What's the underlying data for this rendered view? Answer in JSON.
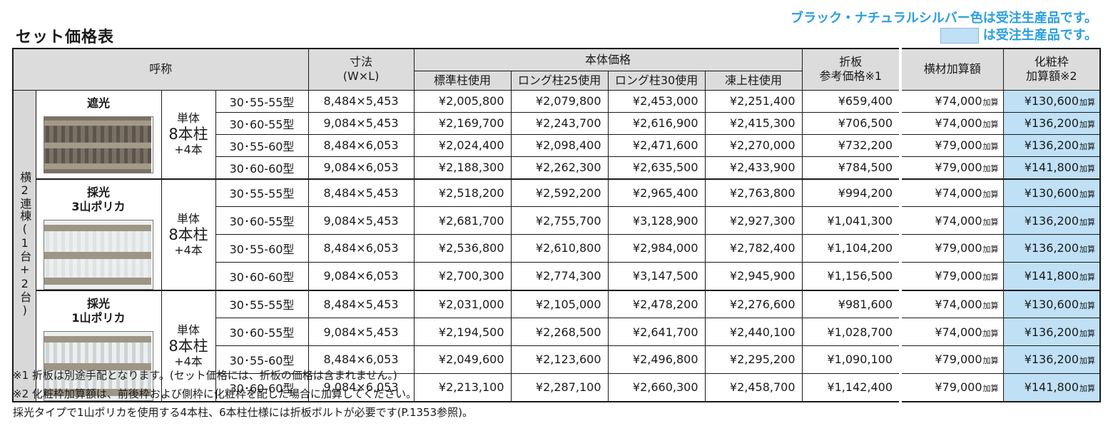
{
  "title": "セット価格表",
  "notice": {
    "line1": "ブラック・ナチュラルシルバー色は受注生産品です。",
    "line2": "は受注生産品です。"
  },
  "header": {
    "name": "呼称",
    "size_line1": "寸法",
    "size_line2": "(W×L)",
    "body_price": "本体価格",
    "col_standard": "標準柱使用",
    "col_long25": "ロング柱25使用",
    "col_long30": "ロング柱30使用",
    "col_frost": "凍上柱使用",
    "orioban_line1": "折板",
    "orioban_line2": "参考価格※1",
    "yokozai": "横材加算額",
    "kesho_line1": "化粧枠",
    "kesho_line2": "加算額※2"
  },
  "group_label": "横2連棟(1台+2台)",
  "add_suffix": "加算",
  "sections": [
    {
      "kind": "遮光",
      "posts_line1": "単体",
      "posts_line2": "8本柱",
      "posts_line3": "+4本",
      "rows": [
        {
          "model": "30･55-55型",
          "dim": "8,484×5,453",
          "std": "¥2,005,800",
          "l25": "¥2,079,800",
          "l30": "¥2,453,000",
          "frost": "¥2,251,400",
          "orioban": "¥659,400",
          "yokozai": "¥74,000",
          "kesho": "¥130,600"
        },
        {
          "model": "30･60-55型",
          "dim": "9,084×5,453",
          "std": "¥2,169,700",
          "l25": "¥2,243,700",
          "l30": "¥2,616,900",
          "frost": "¥2,415,300",
          "orioban": "¥706,500",
          "yokozai": "¥74,000",
          "kesho": "¥136,200"
        },
        {
          "model": "30･55-60型",
          "dim": "8,484×6,053",
          "std": "¥2,024,400",
          "l25": "¥2,098,400",
          "l30": "¥2,471,600",
          "frost": "¥2,270,000",
          "orioban": "¥732,200",
          "yokozai": "¥79,000",
          "kesho": "¥136,200"
        },
        {
          "model": "30･60-60型",
          "dim": "9,084×6,053",
          "std": "¥2,188,300",
          "l25": "¥2,262,300",
          "l30": "¥2,635,500",
          "frost": "¥2,433,900",
          "orioban": "¥784,500",
          "yokozai": "¥79,000",
          "kesho": "¥141,800"
        }
      ]
    },
    {
      "kind": "採光\n3山ポリカ",
      "posts_line1": "単体",
      "posts_line2": "8本柱",
      "posts_line3": "+4本",
      "rows": [
        {
          "model": "30･55-55型",
          "dim": "8,484×5,453",
          "std": "¥2,518,200",
          "l25": "¥2,592,200",
          "l30": "¥2,965,400",
          "frost": "¥2,763,800",
          "orioban": "¥994,200",
          "yokozai": "¥74,000",
          "kesho": "¥130,600"
        },
        {
          "model": "30･60-55型",
          "dim": "9,084×5,453",
          "std": "¥2,681,700",
          "l25": "¥2,755,700",
          "l30": "¥3,128,900",
          "frost": "¥2,927,300",
          "orioban": "¥1,041,300",
          "yokozai": "¥74,000",
          "kesho": "¥136,200"
        },
        {
          "model": "30･55-60型",
          "dim": "8,484×6,053",
          "std": "¥2,536,800",
          "l25": "¥2,610,800",
          "l30": "¥2,984,000",
          "frost": "¥2,782,400",
          "orioban": "¥1,104,200",
          "yokozai": "¥79,000",
          "kesho": "¥136,200"
        },
        {
          "model": "30･60-60型",
          "dim": "9,084×6,053",
          "std": "¥2,700,300",
          "l25": "¥2,774,300",
          "l30": "¥3,147,500",
          "frost": "¥2,945,900",
          "orioban": "¥1,156,500",
          "yokozai": "¥79,000",
          "kesho": "¥141,800"
        }
      ]
    },
    {
      "kind": "採光\n1山ポリカ",
      "posts_line1": "単体",
      "posts_line2": "8本柱",
      "posts_line3": "+4本",
      "rows": [
        {
          "model": "30･55-55型",
          "dim": "8,484×5,453",
          "std": "¥2,031,000",
          "l25": "¥2,105,000",
          "l30": "¥2,478,200",
          "frost": "¥2,276,600",
          "orioban": "¥981,600",
          "yokozai": "¥74,000",
          "kesho": "¥130,600"
        },
        {
          "model": "30･60-55型",
          "dim": "9,084×5,453",
          "std": "¥2,194,500",
          "l25": "¥2,268,500",
          "l30": "¥2,641,700",
          "frost": "¥2,440,100",
          "orioban": "¥1,028,700",
          "yokozai": "¥74,000",
          "kesho": "¥136,200"
        },
        {
          "model": "30･55-60型",
          "dim": "8,484×6,053",
          "std": "¥2,049,600",
          "l25": "¥2,123,600",
          "l30": "¥2,496,800",
          "frost": "¥2,295,200",
          "orioban": "¥1,090,100",
          "yokozai": "¥79,000",
          "kesho": "¥136,200"
        },
        {
          "model": "30･60-60型",
          "dim": "9,084×6,053",
          "std": "¥2,213,100",
          "l25": "¥2,287,100",
          "l30": "¥2,660,300",
          "frost": "¥2,458,700",
          "orioban": "¥1,142,400",
          "yokozai": "¥79,000",
          "kesho": "¥141,800"
        }
      ]
    }
  ],
  "notes": [
    "※1 折板は別途手配となります。(セット価格には、折板の価格は含まれません。)",
    "※2 化粧枠加算額は、前後枠および側枠に化粧枠を配した場合に加算してください。",
    "採光タイプで1山ポリカを使用する4本柱、6本柱仕様には折板ボルトが必要です(P.1353参照)。"
  ],
  "colors": {
    "notice": "#2a9fe0",
    "highlight": "#bfe0f5",
    "header_bg": "#dcdcdc"
  }
}
